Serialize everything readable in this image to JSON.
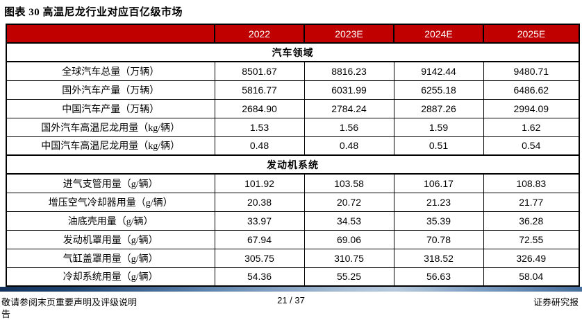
{
  "page": {
    "title": "图表 30 高温尼龙行业对应百亿级市场"
  },
  "table": {
    "header_bg": "#C00000",
    "border_color": "#000000",
    "columns": [
      "",
      "2022",
      "2023E",
      "2024E",
      "2025E"
    ],
    "rows": [
      {
        "type": "section",
        "label": "汽车领域"
      },
      {
        "type": "data",
        "label": "全球汽车总量（万辆）",
        "values": [
          "8501.67",
          "8816.23",
          "9142.44",
          "9480.71"
        ]
      },
      {
        "type": "data",
        "label": "国外汽车产量（万辆）",
        "values": [
          "5816.77",
          "6031.99",
          "6255.18",
          "6486.62"
        ]
      },
      {
        "type": "data",
        "label": "中国汽车产量（万辆）",
        "values": [
          "2684.90",
          "2784.24",
          "2887.26",
          "2994.09"
        ]
      },
      {
        "type": "data",
        "label": "国外汽车高温尼龙用量（kg/辆）",
        "values": [
          "1.53",
          "1.56",
          "1.59",
          "1.62"
        ]
      },
      {
        "type": "data",
        "label": "中国汽车高温尼龙用量（kg/辆）",
        "values": [
          "0.48",
          "0.48",
          "0.51",
          "0.54"
        ]
      },
      {
        "type": "section",
        "label": "发动机系统"
      },
      {
        "type": "data",
        "label": "进气支管用量（g/辆）",
        "values": [
          "101.92",
          "103.58",
          "106.17",
          "108.83"
        ]
      },
      {
        "type": "data",
        "label": "增压空气冷却器用量（g/辆）",
        "values": [
          "20.38",
          "20.72",
          "21.23",
          "21.77"
        ]
      },
      {
        "type": "data",
        "label": "油底壳用量（g/辆）",
        "values": [
          "33.97",
          "34.53",
          "35.39",
          "36.28"
        ]
      },
      {
        "type": "data",
        "label": "发动机罩用量（g/辆）",
        "values": [
          "67.94",
          "69.06",
          "70.78",
          "72.55"
        ]
      },
      {
        "type": "data",
        "label": "气缸盖罩用量（g/辆）",
        "values": [
          "305.75",
          "310.75",
          "318.52",
          "326.49"
        ]
      },
      {
        "type": "data",
        "label": "冷却系统用量（g/辆）",
        "values": [
          "54.36",
          "55.25",
          "56.63",
          "58.04"
        ]
      }
    ]
  },
  "footer": {
    "disclaimer": "敬请参阅末页重要声明及评级说明",
    "page_number": "21 / 37",
    "report_label": "证券研究报",
    "report_label_wrap": "告"
  }
}
